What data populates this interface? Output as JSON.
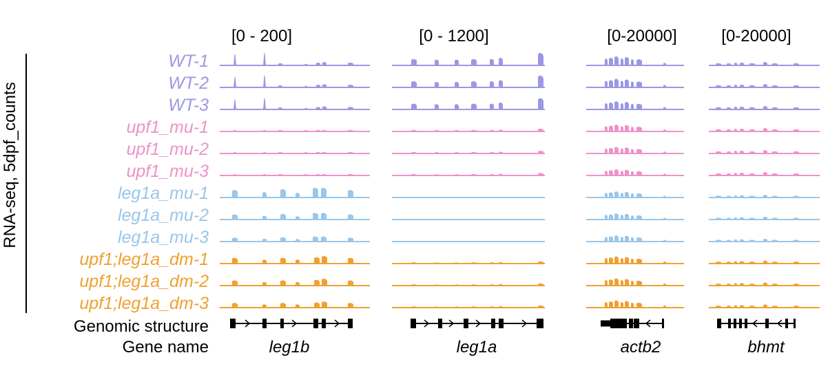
{
  "y_axis_label": "RNA-seq, 5dpf_counts",
  "colors": {
    "wt": "#9b97e6",
    "upf1": "#ee92c8",
    "leg1a": "#99c6ea",
    "dm": "#f0a030",
    "text": "#000000"
  },
  "rows": [
    {
      "label": "WT-1",
      "group": "wt"
    },
    {
      "label": "WT-2",
      "group": "wt"
    },
    {
      "label": "WT-3",
      "group": "wt"
    },
    {
      "label": "upf1_mu-1",
      "group": "upf1"
    },
    {
      "label": "upf1_mu-2",
      "group": "upf1"
    },
    {
      "label": "upf1_mu-3",
      "group": "upf1"
    },
    {
      "label": "leg1a_mu-1",
      "group": "leg1a"
    },
    {
      "label": "leg1a_mu-2",
      "group": "leg1a"
    },
    {
      "label": "leg1a_mu-3",
      "group": "leg1a"
    },
    {
      "label": "upf1;leg1a_dm-1",
      "group": "dm"
    },
    {
      "label": "upf1;leg1a_dm-2",
      "group": "dm"
    },
    {
      "label": "upf1;leg1a_dm-3",
      "group": "dm"
    }
  ],
  "panels": [
    {
      "range": "[0 - 200]",
      "gene": "leg1b"
    },
    {
      "range": "[0 - 1200]",
      "gene": "leg1a"
    },
    {
      "range": "[0-20000]",
      "gene": "actb2"
    },
    {
      "range": "[0-20000]",
      "gene": "bhmt"
    }
  ],
  "footer": {
    "structure_label": "Genomic structure",
    "gene_label": "Gene name"
  }
}
